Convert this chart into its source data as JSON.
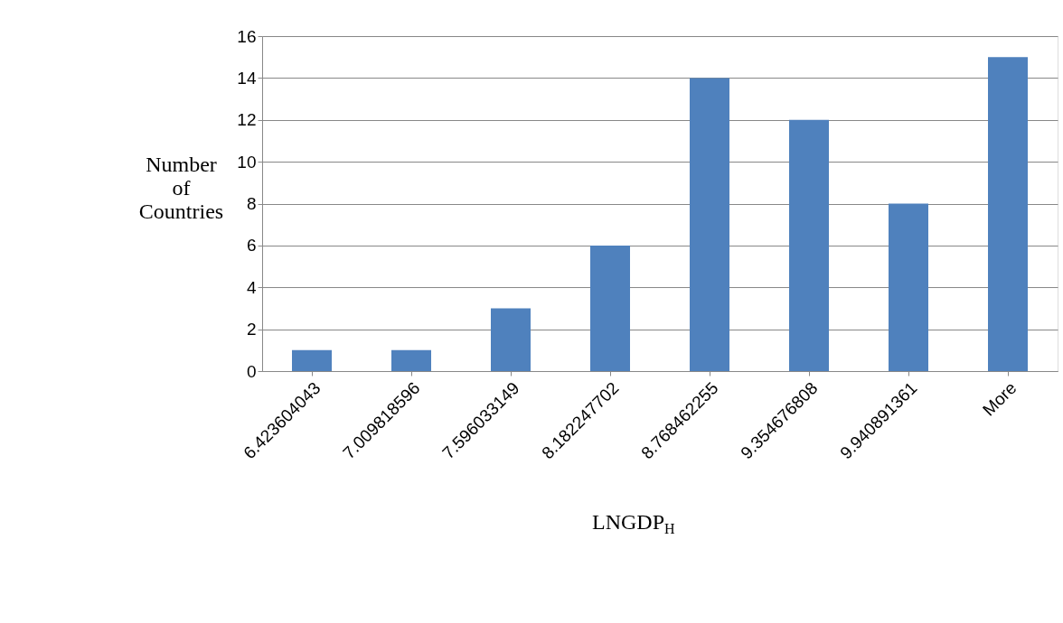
{
  "chart_data": {
    "type": "bar",
    "xlabel": "LNGDP$_{H}$",
    "ylabel": "Number of Countries",
    "categories": [
      "6.423604043",
      "7.009818596",
      "7.596033149",
      "8.182247702",
      "8.768462255",
      "9.354676808",
      "9.940891361",
      "More"
    ],
    "values": [
      1,
      1,
      3,
      6,
      14,
      12,
      8,
      15
    ],
    "color": "#4f81bd",
    "ylim": [
      0,
      16
    ],
    "yticks": [
      0,
      2,
      4,
      6,
      8,
      10,
      12,
      14,
      16
    ],
    "grid": "y"
  }
}
